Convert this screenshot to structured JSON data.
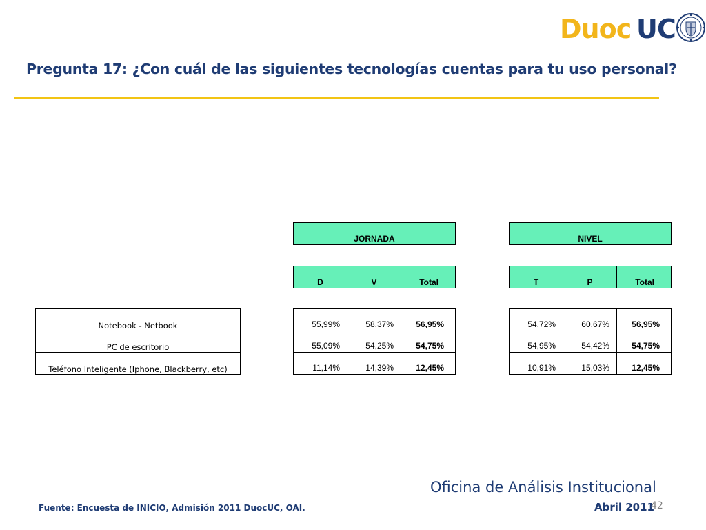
{
  "logo": {
    "part1": "Duoc",
    "part2": "UC",
    "seal_icon": "university-seal-icon"
  },
  "title": "Pregunta 17: ¿Con cuál de las siguientes tecnologías  cuentas para tu uso personal?",
  "colors": {
    "title": "#1f3c74",
    "logo_yellow": "#f2b51b",
    "rule": "#f2c414",
    "header_fill": "#66f0b8",
    "page_num": "#808080"
  },
  "jornada": {
    "group_label": "JORNADA",
    "columns": [
      "D",
      "V",
      "Total"
    ]
  },
  "nivel": {
    "group_label": "NIVEL",
    "columns": [
      "T",
      "P",
      "Total"
    ]
  },
  "rows": [
    {
      "label": "Notebook - Netbook",
      "jornada": [
        "55,99%",
        "58,37%",
        "56,95%"
      ],
      "nivel": [
        "54,72%",
        "60,67%",
        "56,95%"
      ]
    },
    {
      "label": "PC de escritorio",
      "jornada": [
        "55,09%",
        "54,25%",
        "54,75%"
      ],
      "nivel": [
        "54,95%",
        "54,42%",
        "54,75%"
      ]
    },
    {
      "label": "Teléfono Inteligente (Iphone, Blackberry, etc)",
      "jornada": [
        "11,14%",
        "14,39%",
        "12,45%"
      ],
      "nivel": [
        "10,91%",
        "15,03%",
        "12,45%"
      ]
    }
  ],
  "footer": {
    "office": "Oficina de Análisis Institucional",
    "source": "Fuente: Encuesta de INICIO, Admisión 2011 DuocUC, OAI.",
    "date": "Abril 2011",
    "page_number": "42"
  }
}
